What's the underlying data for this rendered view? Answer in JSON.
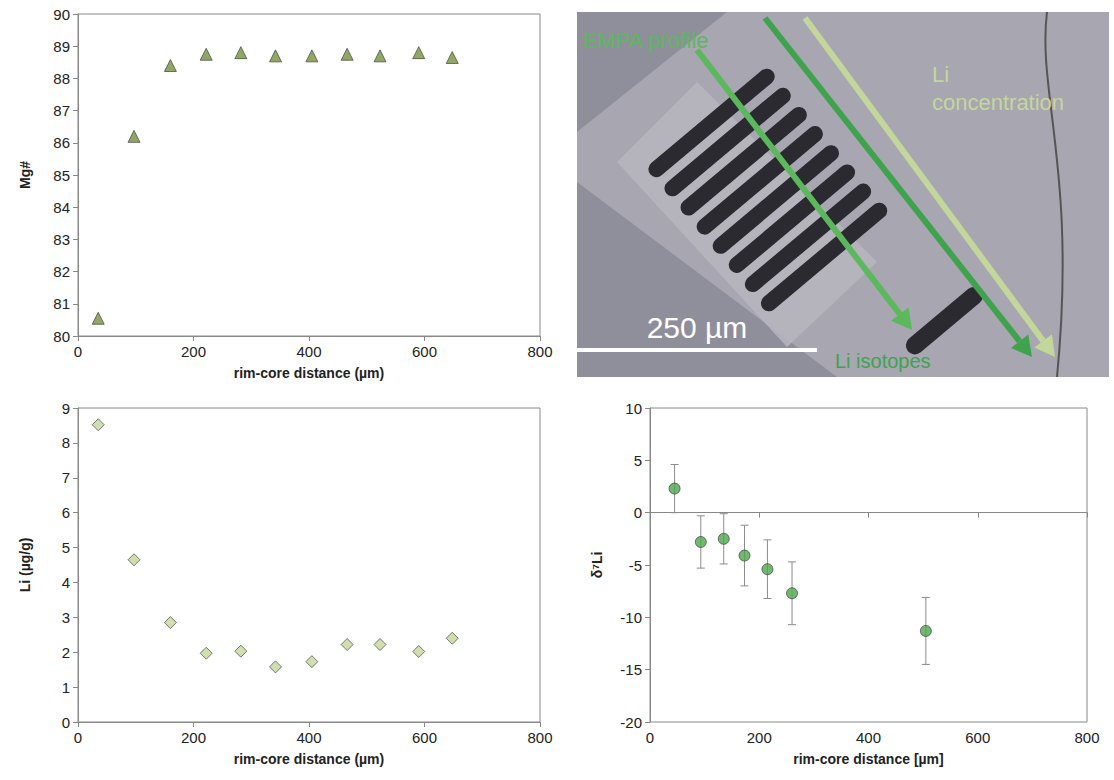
{
  "chart_data": [
    {
      "type": "scatter",
      "x_label": "rim-core distance (µm)",
      "y_label": "Mg#",
      "x": [
        35,
        97,
        160,
        222,
        282,
        342,
        405,
        466,
        523,
        590,
        648
      ],
      "values": [
        80.55,
        86.2,
        88.4,
        88.75,
        88.8,
        88.7,
        88.7,
        88.75,
        88.7,
        88.8,
        88.65
      ],
      "color": "#76923c",
      "marker": "triangle",
      "xlim": [
        0,
        800
      ],
      "xticks": [
        0,
        200,
        400,
        600,
        800
      ],
      "ylim": [
        80,
        90
      ],
      "yticks": [
        80,
        81,
        82,
        83,
        84,
        85,
        86,
        87,
        88,
        89,
        90
      ],
      "grid": false
    },
    {
      "type": "scatter",
      "x_label": "rim-core distance (µm)",
      "y_label": "Li (µg/g)",
      "x": [
        35,
        97,
        160,
        222,
        282,
        342,
        405,
        466,
        523,
        590,
        648
      ],
      "values": [
        8.52,
        4.65,
        2.85,
        1.97,
        2.03,
        1.58,
        1.73,
        2.22,
        2.22,
        2.02,
        2.4
      ],
      "color": "#c4d79b",
      "marker": "diamond",
      "xlim": [
        0,
        800
      ],
      "xticks": [
        0,
        200,
        400,
        600,
        800
      ],
      "ylim": [
        0,
        9
      ],
      "yticks": [
        0,
        1,
        2,
        3,
        4,
        5,
        6,
        7,
        8,
        9
      ],
      "grid": false
    },
    {
      "type": "scatter",
      "x_label": "rim-core distance [µm]",
      "y_label": "δ⁷Li",
      "x": [
        45,
        93,
        135,
        173,
        215,
        260,
        505
      ],
      "values": [
        2.3,
        -2.8,
        -2.5,
        -4.1,
        -5.4,
        -7.7,
        -11.3
      ],
      "errors": [
        2.3,
        2.5,
        2.4,
        2.9,
        2.8,
        3.0,
        3.2
      ],
      "color": "#4ea64e",
      "marker": "circle",
      "xlim": [
        0,
        800
      ],
      "xticks": [
        0,
        200,
        400,
        600,
        800
      ],
      "ylim": [
        -20,
        10
      ],
      "yticks": [
        -20,
        -15,
        -10,
        -5,
        0,
        5,
        10
      ],
      "grid": false
    }
  ],
  "photo": {
    "labels": [
      {
        "text": "EMPA profile",
        "color": "#5cb85c"
      },
      {
        "text": "Li concentration",
        "color": "#c4d79b"
      },
      {
        "text": "Li isotopes",
        "color": "#3fa34d"
      }
    ],
    "scale_bar": "250 µm"
  }
}
